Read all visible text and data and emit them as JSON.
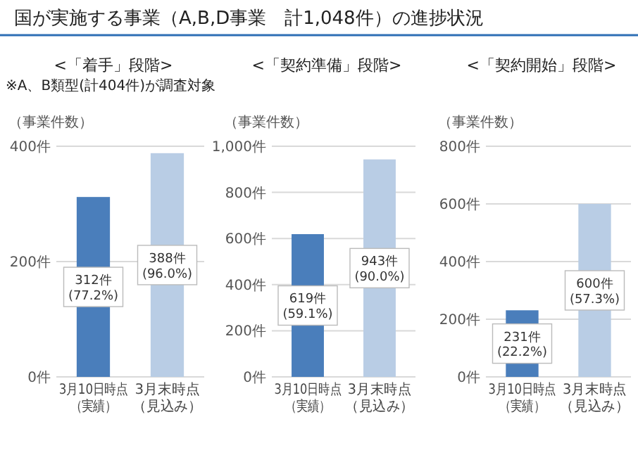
{
  "chart_data": [
    {
      "type": "bar",
      "title": "<「着手」段階>",
      "subtitle": "※A、B類型(計404件)が調査対象",
      "annotations": [
        "国が実施する事業（A,B,D事業　計1,048件）の進捗状況"
      ],
      "ylabel": "（事業件数）",
      "categories": [
        "3月10日時点（実績）",
        "3月末時点（見込み）"
      ],
      "values": [
        312,
        388
      ],
      "colors": [
        "#4a7ebb",
        "#b9cde5"
      ],
      "value_labels": [
        "312件\n(77.2%)",
        "388件\n(96.0%)"
      ],
      "ylim": [
        0,
        400
      ],
      "yticks": [
        {
          "value": 0,
          "label": "0件"
        },
        {
          "value": 200,
          "label": "200件"
        },
        {
          "value": 400,
          "label": "400件"
        }
      ],
      "grid": "y"
    },
    {
      "type": "bar",
      "title": "<「契約準備」段階>",
      "ylabel": "（事業件数）",
      "categories": [
        "3月10日時点（実績）",
        "3月末時点（見込み）"
      ],
      "values": [
        619,
        943
      ],
      "colors": [
        "#4a7ebb",
        "#b9cde5"
      ],
      "value_labels": [
        "619件\n(59.1%)",
        "943件\n(90.0%)"
      ],
      "ylim": [
        0,
        1000
      ],
      "yticks": [
        {
          "value": 0,
          "label": "0件"
        },
        {
          "value": 200,
          "label": "200件"
        },
        {
          "value": 400,
          "label": "400件"
        },
        {
          "value": 600,
          "label": "600件"
        },
        {
          "value": 800,
          "label": "800件"
        },
        {
          "value": 1000,
          "label": "1,000件"
        }
      ],
      "grid": "y"
    },
    {
      "type": "bar",
      "title": "<「契約開始」段階>",
      "ylabel": "（事業件数）",
      "categories": [
        "3月10日時点（実績）",
        "3月末時点（見込み）"
      ],
      "values": [
        231,
        600
      ],
      "colors": [
        "#4a7ebb",
        "#b9cde5"
      ],
      "value_labels": [
        "231件\n(22.2%)",
        "600件\n(57.3%)"
      ],
      "ylim": [
        0,
        800
      ],
      "yticks": [
        {
          "value": 0,
          "label": "0件"
        },
        {
          "value": 200,
          "label": "200件"
        },
        {
          "value": 400,
          "label": "400件"
        },
        {
          "value": 600,
          "label": "600件"
        },
        {
          "value": 800,
          "label": "800件"
        }
      ],
      "grid": "y"
    }
  ]
}
